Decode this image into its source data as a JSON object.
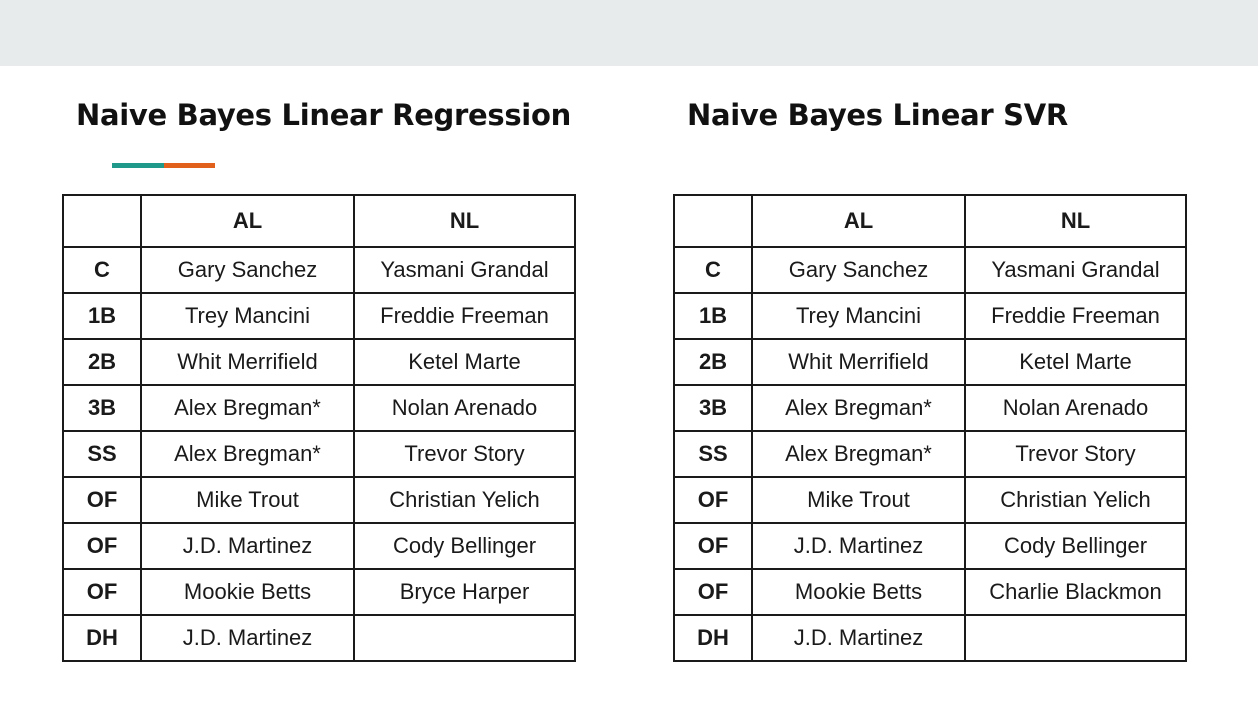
{
  "colors": {
    "accent_teal": "#1f9a8a",
    "accent_orange": "#e0601c",
    "top_band": "#e8ebec"
  },
  "left": {
    "title": "Naive Bayes Linear Regression",
    "headers": [
      "",
      "AL",
      "NL"
    ],
    "rows": [
      {
        "pos": "C",
        "al": "Gary Sanchez",
        "nl": "Yasmani Grandal"
      },
      {
        "pos": "1B",
        "al": "Trey Mancini",
        "nl": "Freddie Freeman"
      },
      {
        "pos": "2B",
        "al": "Whit Merrifield",
        "nl": "Ketel Marte"
      },
      {
        "pos": "3B",
        "al": "Alex Bregman*",
        "nl": "Nolan Arenado"
      },
      {
        "pos": "SS",
        "al": "Alex Bregman*",
        "nl": "Trevor Story"
      },
      {
        "pos": "OF",
        "al": "Mike Trout",
        "nl": "Christian Yelich"
      },
      {
        "pos": "OF",
        "al": "J.D. Martinez",
        "nl": "Cody Bellinger"
      },
      {
        "pos": "OF",
        "al": "Mookie Betts",
        "nl": "Bryce Harper"
      },
      {
        "pos": "DH",
        "al": "J.D. Martinez",
        "nl": ""
      }
    ]
  },
  "right": {
    "title": "Naive Bayes Linear SVR",
    "headers": [
      "",
      "AL",
      "NL"
    ],
    "rows": [
      {
        "pos": "C",
        "al": "Gary Sanchez",
        "nl": "Yasmani Grandal"
      },
      {
        "pos": "1B",
        "al": "Trey Mancini",
        "nl": "Freddie Freeman"
      },
      {
        "pos": "2B",
        "al": "Whit Merrifield",
        "nl": "Ketel Marte"
      },
      {
        "pos": "3B",
        "al": "Alex Bregman*",
        "nl": "Nolan Arenado"
      },
      {
        "pos": "SS",
        "al": "Alex Bregman*",
        "nl": "Trevor Story"
      },
      {
        "pos": "OF",
        "al": "Mike Trout",
        "nl": "Christian Yelich"
      },
      {
        "pos": "OF",
        "al": "J.D. Martinez",
        "nl": "Cody Bellinger"
      },
      {
        "pos": "OF",
        "al": "Mookie Betts",
        "nl": "Charlie Blackmon"
      },
      {
        "pos": "DH",
        "al": "J.D. Martinez",
        "nl": ""
      }
    ]
  }
}
